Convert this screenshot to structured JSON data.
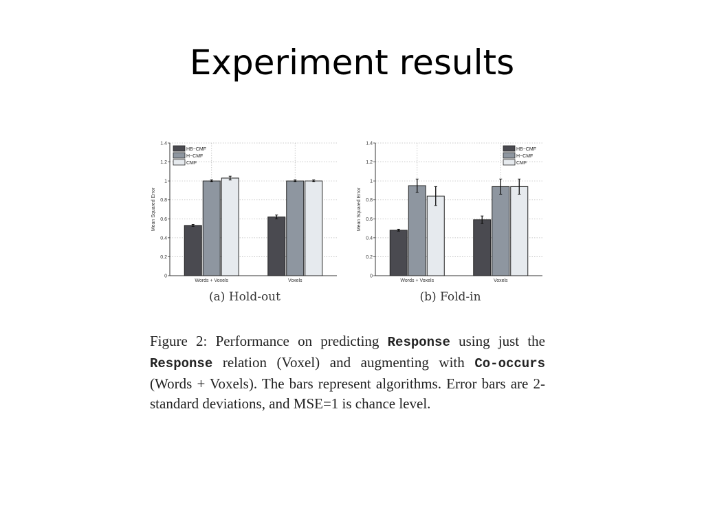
{
  "slide": {
    "title": "Experiment results"
  },
  "legend": [
    "HB−CMF",
    "H−CMF",
    "CMF"
  ],
  "colors": {
    "HB-CMF": "#4a4a50",
    "H-CMF": "#8e96a0",
    "CMF": "#e6eaee"
  },
  "chart_data": [
    {
      "type": "bar",
      "caption": "(a) Hold-out",
      "ylabel": "Mean Squared Error",
      "ylim": [
        0,
        1.4
      ],
      "yticks": [
        "0",
        "0.2",
        "0.4",
        "0.6",
        "0.8",
        "1",
        "1.2",
        "1.4"
      ],
      "grid": true,
      "legend_position": "top-left",
      "categories": [
        "Words + Voxels",
        "Voxels"
      ],
      "series": [
        {
          "name": "HB−CMF",
          "values": [
            0.53,
            0.62
          ],
          "errors": [
            0.01,
            0.02
          ]
        },
        {
          "name": "H−CMF",
          "values": [
            1.0,
            1.0
          ],
          "errors": [
            0.01,
            0.01
          ]
        },
        {
          "name": "CMF",
          "values": [
            1.03,
            1.0
          ],
          "errors": [
            0.02,
            0.01
          ]
        }
      ]
    },
    {
      "type": "bar",
      "caption": "(b) Fold-in",
      "ylabel": "Mean Squared Error",
      "ylim": [
        0,
        1.4
      ],
      "yticks": [
        "0",
        "0.2",
        "0.4",
        "0.6",
        "0.8",
        "1",
        "1.2",
        "1.4"
      ],
      "grid": true,
      "legend_position": "top-right",
      "categories": [
        "Words + Voxels",
        "Voxels"
      ],
      "series": [
        {
          "name": "HB−CMF",
          "values": [
            0.48,
            0.59
          ],
          "errors": [
            0.01,
            0.04
          ]
        },
        {
          "name": "H−CMF",
          "values": [
            0.95,
            0.94
          ],
          "errors": [
            0.07,
            0.08
          ]
        },
        {
          "name": "CMF",
          "values": [
            0.84,
            0.94
          ],
          "errors": [
            0.1,
            0.08
          ]
        }
      ]
    }
  ],
  "caption": {
    "p1": "Figure 2:  Performance on predicting ",
    "code1": "Response",
    "p2": " using just the ",
    "code2": "Response",
    "p3": " relation (Voxel) and augmenting with ",
    "code3": "Co-occurs",
    "p4": " (Words + Voxels).  The bars represent algorithms. Error bars are 2-standard deviations, and MSE=1 is chance level."
  }
}
